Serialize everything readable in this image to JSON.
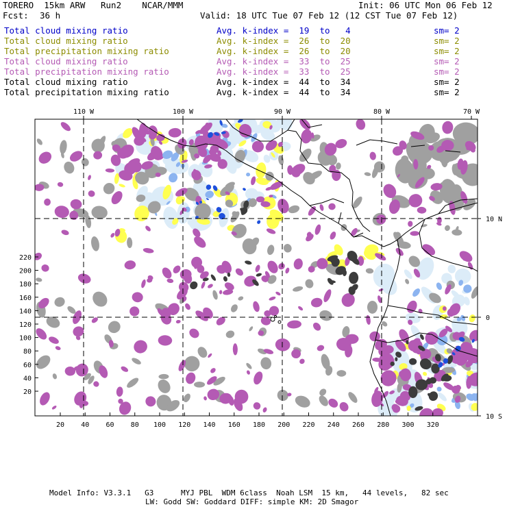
{
  "header": {
    "model": "TORERO  15km ARW   Run2    NCAR/MMM",
    "init": "Init: 06 UTC Mon 06 Feb 12",
    "fcst_label": "Fcst:",
    "fcst_hours": "36 h",
    "valid": "Valid: 18 UTC Tue 07 Feb 12 (12 CST Tue 07 Feb 12)"
  },
  "legend": [
    {
      "field": "Total cloud mixing ratio",
      "kindex": "Avg. k-index =  19  to   4",
      "sm": "sm= 2",
      "color": "#0000c8"
    },
    {
      "field": "Total cloud mixing ratio",
      "kindex": "Avg. k-index =  26  to  20",
      "sm": "sm= 2",
      "color": "#8c8c00"
    },
    {
      "field": "Total precipitation mixing ratio",
      "kindex": "Avg. k-index =  26  to  20",
      "sm": "sm= 2",
      "color": "#8c8c00"
    },
    {
      "field": "Total cloud mixing ratio",
      "kindex": "Avg. k-index =  33  to  25",
      "sm": "sm= 2",
      "color": "#b45ab4"
    },
    {
      "field": "Total precipitation mixing ratio",
      "kindex": "Avg. k-index =  33  to  25",
      "sm": "sm= 2",
      "color": "#b45ab4"
    },
    {
      "field": "Total cloud mixing ratio",
      "kindex": "Avg. k-index =  44  to  34",
      "sm": "sm= 2",
      "color": "#000000"
    },
    {
      "field": "Total precipitation mixing ratio",
      "kindex": "Avg. k-index =  44  to  34",
      "sm": "sm= 2",
      "color": "#000000"
    }
  ],
  "map": {
    "longitude_labels": [
      "110 W",
      "100 W",
      "90 W",
      "80 W",
      "70 W"
    ],
    "latitude_labels": [
      "10 N",
      "0",
      "10 S"
    ],
    "x_ticks": [
      "20",
      "40",
      "60",
      "80",
      "100",
      "120",
      "140",
      "160",
      "180",
      "200",
      "220",
      "240",
      "260",
      "280",
      "300",
      "320"
    ],
    "y_ticks": [
      "20",
      "40",
      "60",
      "80",
      "100",
      "120",
      "140",
      "160",
      "180",
      "200",
      "220"
    ],
    "colors": {
      "blue_light": "#dcecf8",
      "blue_mid": "#8cb4f0",
      "blue_dark": "#1e50dc",
      "yellow": "#ffff50",
      "purple": "#b45ab4",
      "gray": "#a0a0a0",
      "dark": "#3c3c3c"
    }
  },
  "footer": {
    "line1": "Model Info: V3.3.1   G3      MYJ PBL  WDM 6class  Noah LSM  15 km,   44 levels,   82 sec",
    "line2": "LW: Godd SW: Goddard DIFF: simple KM: 2D Smagor"
  }
}
